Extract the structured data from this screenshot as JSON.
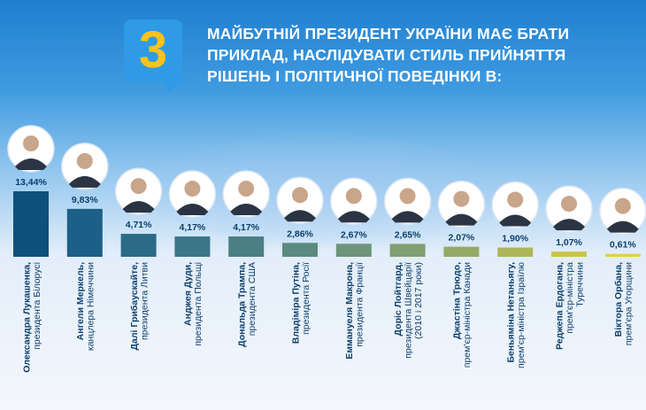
{
  "badge": {
    "number": "3"
  },
  "title_lines": [
    "МАЙБУТНІЙ ПРЕЗИДЕНТ УКРАЇНИ МАЄ БРАТИ",
    "ПРИКЛАД, НАСЛІДУВАТИ СТИЛЬ ПРИЙНЯТТЯ",
    "РІШЕНЬ І ПОЛІТИЧНОЇ ПОВЕДІНКИ В:"
  ],
  "colors": {
    "bar_gradient": [
      "#0f4f7c",
      "#1d5f86",
      "#2b6b85",
      "#3a7688",
      "#4a7f83",
      "#5c8a80",
      "#6c957b",
      "#809f72",
      "#95aa66",
      "#aeb75a",
      "#c8c44b",
      "#e3d33a"
    ],
    "text_dark": "#0d3f6b",
    "portrait_bg": "#ffffff"
  },
  "chart_data": {
    "type": "bar",
    "ylim": [
      0,
      13.44
    ],
    "values": [
      13.44,
      9.83,
      4.71,
      4.17,
      4.17,
      2.86,
      2.67,
      2.65,
      2.07,
      1.9,
      1.07,
      0.61
    ],
    "value_labels": [
      "13,44%",
      "9,83%",
      "4,71%",
      "4,17%",
      "4,17%",
      "2,86%",
      "2,67%",
      "2,65%",
      "2,07%",
      "1,90%",
      "1,07%",
      "0,61%"
    ],
    "categories": [
      [
        "Олександра Лукашенка,",
        "президента Білорусі"
      ],
      [
        "Ангели Меркель,",
        "канцлера Німеччини"
      ],
      [
        "Далі Грибаускайте,",
        "президента Литви"
      ],
      [
        "Анджея Дуди,",
        "президента Польщі"
      ],
      [
        "Дональда Трампа,",
        "президента США"
      ],
      [
        "Владіміра Путіна,",
        "президента Росії"
      ],
      [
        "Еммануеля Макрона,",
        "президента Франції"
      ],
      [
        "Доріс Лойтгард,",
        "президента Швейцарії",
        "(2010 і 2017 роки)"
      ],
      [
        "Джастіна Трюдо,",
        "прем'єр-міністра Канади"
      ],
      [
        "Беньяміна Нетаньягу,",
        "прем'єр-міністра Ізраїлю"
      ],
      [
        "Реджепа Ердогана,",
        "прем'єр-міністра",
        "Туреччини"
      ],
      [
        "Віктора Орбана,",
        "прем'єра Угорщини"
      ]
    ]
  }
}
